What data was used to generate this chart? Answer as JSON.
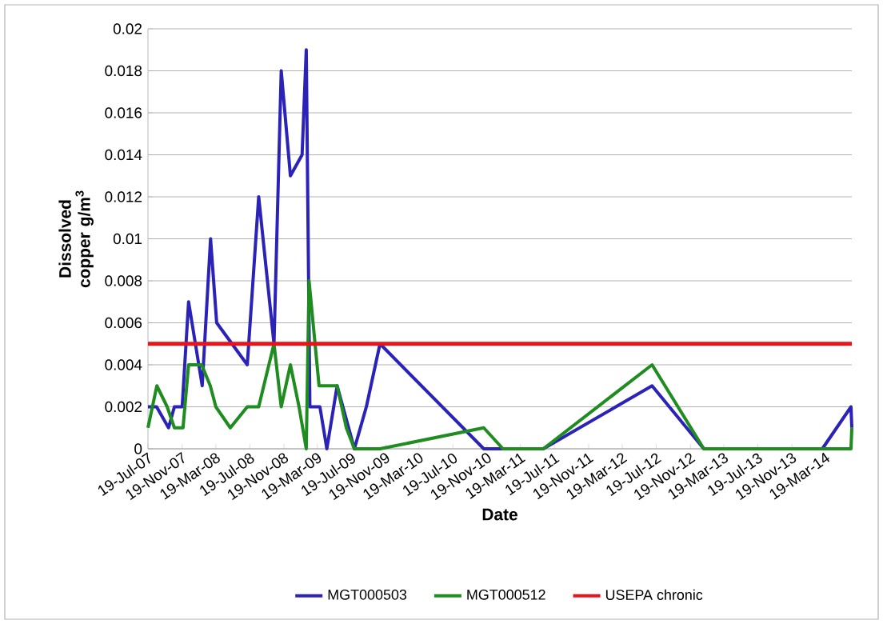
{
  "chart_data": {
    "type": "line",
    "xlabel": "Date",
    "ylabel": "Dissolved copper g/m$^{3}$",
    "xlim": [
      "2007-07-19",
      "2014-06-22"
    ],
    "xticks": [
      {
        "value": "2007-07-19",
        "label": "19-Jul-07"
      },
      {
        "value": "2007-11-19",
        "label": "19-Nov-07"
      },
      {
        "value": "2008-03-19",
        "label": "19-Mar-08"
      },
      {
        "value": "2008-07-19",
        "label": "19-Jul-08"
      },
      {
        "value": "2008-11-19",
        "label": "19-Nov-08"
      },
      {
        "value": "2009-03-19",
        "label": "19-Mar-09"
      },
      {
        "value": "2009-07-19",
        "label": "19-Jul-09"
      },
      {
        "value": "2009-11-19",
        "label": "19-Nov-09"
      },
      {
        "value": "2010-03-19",
        "label": "19-Mar-10"
      },
      {
        "value": "2010-07-19",
        "label": "19-Jul-10"
      },
      {
        "value": "2010-11-19",
        "label": "19-Nov-10"
      },
      {
        "value": "2011-03-19",
        "label": "19-Mar-11"
      },
      {
        "value": "2011-07-19",
        "label": "19-Jul-11"
      },
      {
        "value": "2011-11-19",
        "label": "19-Nov-11"
      },
      {
        "value": "2012-03-19",
        "label": "19-Mar-12"
      },
      {
        "value": "2012-07-19",
        "label": "19-Jul-12"
      },
      {
        "value": "2012-11-19",
        "label": "19-Nov-12"
      },
      {
        "value": "2013-03-19",
        "label": "19-Mar-13"
      },
      {
        "value": "2013-07-19",
        "label": "19-Jul-13"
      },
      {
        "value": "2013-11-19",
        "label": "19-Nov-13"
      },
      {
        "value": "2014-03-19",
        "label": "19-Mar-14"
      }
    ],
    "ylim": [
      0,
      0.02
    ],
    "yticks": [
      0,
      0.002,
      0.004,
      0.006,
      0.008,
      0.01,
      0.012,
      0.014,
      0.016,
      0.018,
      0.02
    ],
    "grid": "y",
    "legend": "bottom",
    "marker": "none",
    "line_style": "solid",
    "series": [
      {
        "name": "MGT000503",
        "color": "#2b22b8",
        "x": [
          "2007-07-19",
          "2007-08-19",
          "2007-10-01",
          "2007-10-22",
          "2007-11-19",
          "2007-12-12",
          "2008-01-30",
          "2008-02-29",
          "2008-03-22",
          "2008-07-10",
          "2008-08-20",
          "2008-10-14",
          "2008-11-09",
          "2008-12-12",
          "2009-01-23",
          "2009-02-07",
          "2009-02-20",
          "2009-03-28",
          "2009-04-22",
          "2009-05-29",
          "2009-07-30",
          "2009-09-11",
          "2009-10-30",
          "2010-11-07",
          "2011-06-09",
          "2012-07-04",
          "2013-01-06",
          "2014-03-08",
          "2014-06-19",
          "2014-06-22"
        ],
        "values": [
          0.002,
          0.002,
          0.001,
          0.002,
          0.002,
          0.007,
          0.003,
          0.01,
          0.006,
          0.004,
          0.012,
          0.005,
          0.018,
          0.013,
          0.014,
          0.019,
          0.002,
          0.002,
          0,
          0.003,
          0,
          0.002,
          0.005,
          0,
          0,
          0.003,
          0,
          0,
          0.002,
          0.001
        ]
      },
      {
        "name": "MGT000512",
        "color": "#1e8c1e",
        "x": [
          "2007-07-19",
          "2007-08-20",
          "2007-09-26",
          "2007-10-22",
          "2007-11-22",
          "2007-12-12",
          "2008-01-28",
          "2008-02-28",
          "2008-03-19",
          "2008-05-10",
          "2008-07-10",
          "2008-08-20",
          "2008-10-14",
          "2008-11-09",
          "2008-12-12",
          "2009-01-12",
          "2009-02-07",
          "2009-02-17",
          "2009-03-25",
          "2009-05-29",
          "2009-07-01",
          "2009-07-30",
          "2009-10-30",
          "2010-11-07",
          "2011-01-15",
          "2011-06-09",
          "2012-07-04",
          "2013-01-06",
          "2014-06-19",
          "2014-06-22"
        ],
        "values": [
          0.001,
          0.003,
          0.002,
          0.001,
          0.001,
          0.004,
          0.004,
          0.003,
          0.002,
          0.001,
          0.002,
          0.002,
          0.005,
          0.002,
          0.004,
          0.002,
          0,
          0.008,
          0.003,
          0.003,
          0.001,
          0,
          0,
          0.001,
          0,
          0,
          0.004,
          0,
          0,
          0.001
        ]
      }
    ],
    "ref_lines": [
      {
        "axis": "y",
        "value": 0.005,
        "label": "USEPA chronic",
        "color": "#e8141c"
      }
    ]
  }
}
